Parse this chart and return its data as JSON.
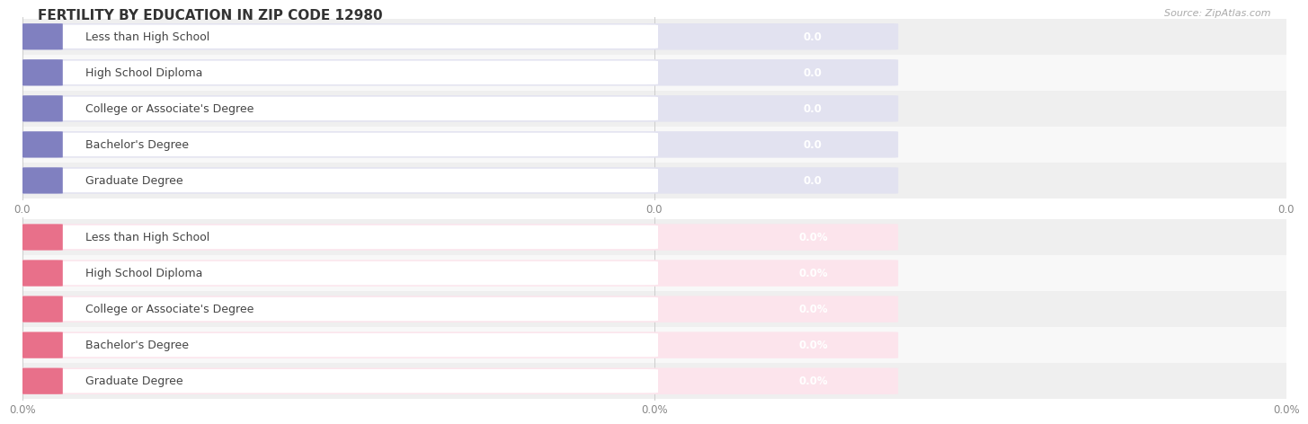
{
  "title": "FERTILITY BY EDUCATION IN ZIP CODE 12980",
  "source": "Source: ZipAtlas.com",
  "categories": [
    "Less than High School",
    "High School Diploma",
    "College or Associate's Degree",
    "Bachelor's Degree",
    "Graduate Degree"
  ],
  "top_values": [
    0.0,
    0.0,
    0.0,
    0.0,
    0.0
  ],
  "bottom_values": [
    0.0,
    0.0,
    0.0,
    0.0,
    0.0
  ],
  "top_bar_color": "#a8a8d8",
  "top_bar_bg": "#e2e2f0",
  "top_label_bg": "#ffffff",
  "top_label_color": "#444444",
  "top_value_color": "#ffffff",
  "top_accent_color": "#8080c0",
  "bottom_bar_color": "#f5a0b8",
  "bottom_bar_bg": "#fce4ec",
  "bottom_label_bg": "#ffffff",
  "bottom_label_color": "#444444",
  "bottom_value_color": "#ffffff",
  "bottom_accent_color": "#e8708a",
  "top_xtick_labels": [
    "0.0",
    "0.0",
    "0.0"
  ],
  "bottom_xtick_labels": [
    "0.0%",
    "0.0%",
    "0.0%"
  ],
  "background_color": "#f5f5f5",
  "row_bg_odd": "#efefef",
  "row_bg_even": "#f8f8f8",
  "title_fontsize": 11,
  "label_fontsize": 9,
  "value_fontsize": 8.5,
  "tick_fontsize": 8.5,
  "source_fontsize": 8
}
